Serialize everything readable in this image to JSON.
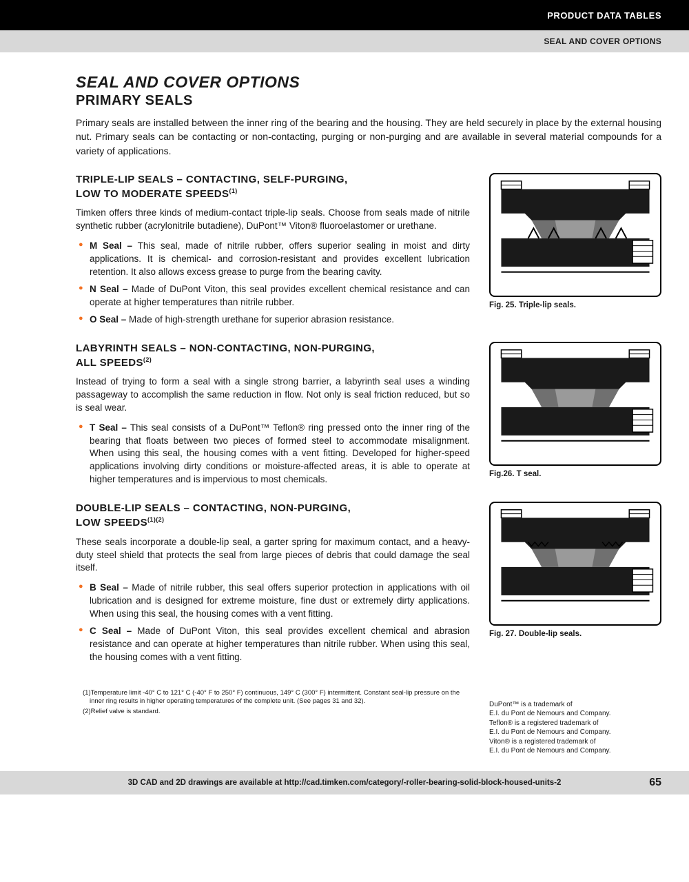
{
  "header": {
    "black_label": "PRODUCT DATA TABLES",
    "gray_label": "SEAL AND COVER OPTIONS"
  },
  "title": {
    "main": "SEAL AND COVER OPTIONS",
    "sub": "PRIMARY SEALS"
  },
  "intro": "Primary seals are installed between the inner ring of the bearing and the housing. They are held securely in place by the external housing nut. Primary seals can be contacting or non-contacting, purging or non-purging and are available in several material compounds for a variety of applications.",
  "sections": [
    {
      "head_line1": "TRIPLE-LIP SEALS – CONTACTING, SELF-PURGING,",
      "head_line2": "LOW TO MODERATE SPEEDS",
      "head_sup": "(1)",
      "body": "Timken offers three kinds of medium-contact triple-lip seals. Choose from seals made of nitrile synthetic rubber (acrylonitrile butadiene), DuPont™ Viton® fluoroelastomer or urethane.",
      "bullets": [
        {
          "label": "M Seal –",
          "text": " This seal, made of nitrile rubber, offers superior sealing in moist and dirty applications. It is chemical- and corrosion-resistant and provides excellent lubrication retention. It also allows excess grease to purge from the bearing cavity."
        },
        {
          "label": "N Seal –",
          "text": " Made of DuPont Viton, this seal provides excellent chemical resistance and can operate at higher temperatures than nitrile rubber."
        },
        {
          "label": "O Seal –",
          "text": " Made of high-strength urethane for superior abrasion resistance."
        }
      ],
      "fig_caption": "Fig. 25. Triple-lip seals."
    },
    {
      "head_line1": "LABYRINTH SEALS – NON-CONTACTING, NON-PURGING,",
      "head_line2": "ALL SPEEDS",
      "head_sup": "(2)",
      "body": "Instead of trying to form a seal with a single strong barrier, a labyrinth seal uses a winding passageway to accomplish the same reduction in flow. Not only is seal friction reduced, but so is seal wear.",
      "bullets": [
        {
          "label": "T Seal –",
          "text": " This seal consists of a DuPont™ Teflon® ring pressed onto the inner ring of the bearing that floats between two pieces of formed steel to accommodate misalignment. When using this seal, the housing comes with a vent fitting. Developed for higher-speed applications involving dirty conditions or moisture-affected areas, it is able to operate at higher temperatures and is impervious to most chemicals."
        }
      ],
      "fig_caption": "Fig.26. T seal."
    },
    {
      "head_line1": "DOUBLE-LIP SEALS – CONTACTING, NON-PURGING,",
      "head_line2": "LOW SPEEDS",
      "head_sup": "(1)(2)",
      "body": "These seals incorporate a double-lip seal, a garter spring for maximum contact, and a heavy-duty steel shield that protects the seal from large pieces of debris that could damage the seal itself.",
      "bullets": [
        {
          "label": "B Seal –",
          "text": " Made of nitrile rubber, this seal offers superior protection in applications with oil lubrication and is designed for extreme moisture, fine dust or extremely dirty applications. When using this seal, the housing comes with a vent fitting."
        },
        {
          "label": "C Seal –",
          "text": " Made of DuPont Viton, this seal provides excellent chemical and abrasion resistance and can operate at higher temperatures than nitrile rubber. When using this seal, the housing comes with a vent fitting."
        }
      ],
      "fig_caption": "Fig. 27. Double-lip seals."
    }
  ],
  "footnotes": {
    "f1": "(1)Temperature limit -40° C to 121° C (-40° F to 250° F) continuous, 149° C (300° F) intermittent. Constant seal-lip pressure on the inner ring results in higher operating temperatures of the complete unit. (See pages 31 and 32).",
    "f2": "(2)Relief valve is standard."
  },
  "trademark": "DuPont™ is a trademark of\nE.I. du Pont de Nemours and Company.\nTeflon® is a registered trademark of\nE.I. du Pont de Nemours and Company.\nViton® is a registered trademark of\nE.I. du Pont de Nemours and Company.",
  "footer": {
    "text": "3D CAD and 2D drawings are available at http://cad.timken.com/category/-roller-bearing-solid-block-housed-units-2",
    "page_num": "65"
  },
  "colors": {
    "bullet_orange": "#f37021",
    "black": "#000000",
    "gray_header": "#d8d8d8"
  }
}
